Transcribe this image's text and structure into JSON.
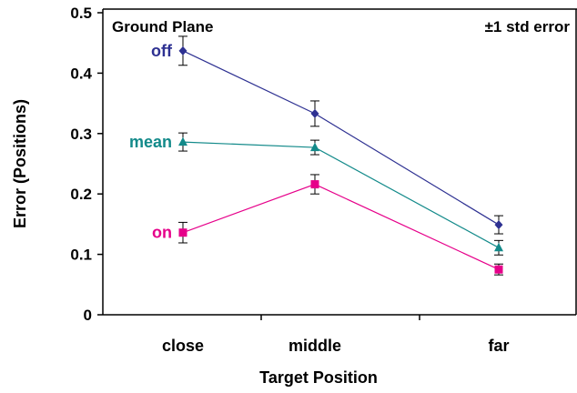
{
  "chart_data": {
    "type": "line",
    "title": "Ground Plane",
    "annotation": "±1 std error",
    "xlabel": "Target Position",
    "ylabel": "Error (Positions)",
    "categories": [
      "close",
      "middle",
      "far"
    ],
    "ylim": [
      0,
      0.5
    ],
    "yticks": [
      "0",
      "0.1",
      "0.2",
      "0.3",
      "0.4",
      "0.5"
    ],
    "series": [
      {
        "name": "off",
        "marker": "diamond",
        "color": "#2e3192",
        "values": [
          0.437,
          0.333,
          0.149
        ],
        "errors": [
          0.024,
          0.021,
          0.015
        ]
      },
      {
        "name": "mean",
        "marker": "triangle",
        "color": "#138a8a",
        "values": [
          0.286,
          0.277,
          0.111
        ],
        "errors": [
          0.015,
          0.012,
          0.012
        ]
      },
      {
        "name": "on",
        "marker": "square",
        "color": "#e6008a",
        "values": [
          0.136,
          0.216,
          0.075
        ],
        "errors": [
          0.017,
          0.016,
          0.009
        ]
      }
    ]
  }
}
